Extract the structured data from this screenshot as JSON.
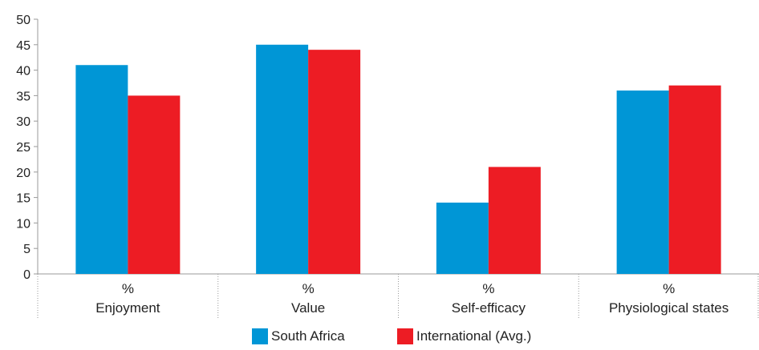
{
  "chart_data": {
    "type": "bar",
    "categories": [
      {
        "sub": "%",
        "label": "Enjoyment"
      },
      {
        "sub": "%",
        "label": "Value"
      },
      {
        "sub": "%",
        "label": "Self-efficacy"
      },
      {
        "sub": "%",
        "label": "Physiological states"
      }
    ],
    "series": [
      {
        "name": "South Africa",
        "color": "#0096d6",
        "values": [
          41,
          45,
          14,
          36
        ]
      },
      {
        "name": "International (Avg.)",
        "color": "#ed1c24",
        "values": [
          35,
          44,
          21,
          37
        ]
      }
    ],
    "ylim": [
      0,
      50
    ],
    "yticks": [
      "0",
      "5",
      "10",
      "15",
      "20",
      "25",
      "30",
      "35",
      "40",
      "45",
      "50"
    ],
    "grid": false,
    "legend": "bottom-center"
  }
}
